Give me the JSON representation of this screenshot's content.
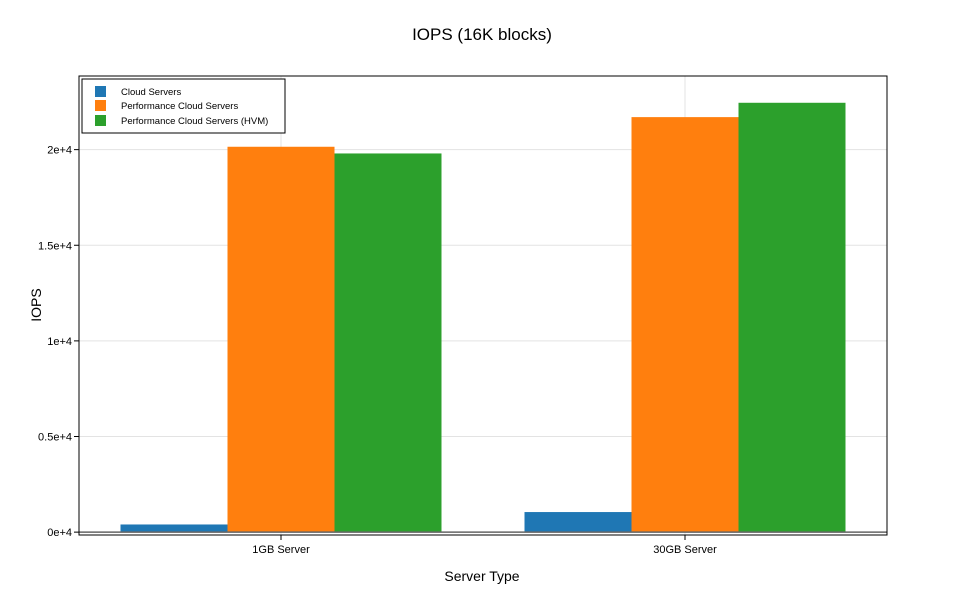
{
  "chart_data": {
    "type": "bar",
    "title": "IOPS (16K blocks)",
    "xlabel": "Server Type",
    "ylabel": "IOPS",
    "categories": [
      "1GB Server",
      "30GB Server"
    ],
    "series": [
      {
        "name": "Cloud Servers",
        "color": "#1f77b4",
        "values": [
          400,
          1050
        ]
      },
      {
        "name": "Performance Cloud Servers",
        "color": "#ff7f0e",
        "values": [
          20150,
          21700
        ]
      },
      {
        "name": "Performance Cloud Servers (HVM)",
        "color": "#2ca02c",
        "values": [
          19800,
          22450
        ]
      }
    ],
    "yticks": [
      0,
      5000,
      10000,
      15000,
      20000
    ],
    "ytick_labels": [
      "0e+4",
      "0.5e+4",
      "1e+4",
      "1.5e+4",
      "2e+4"
    ],
    "ylim": [
      -150,
      23850
    ],
    "grid": true,
    "legend_position": "top-left"
  }
}
